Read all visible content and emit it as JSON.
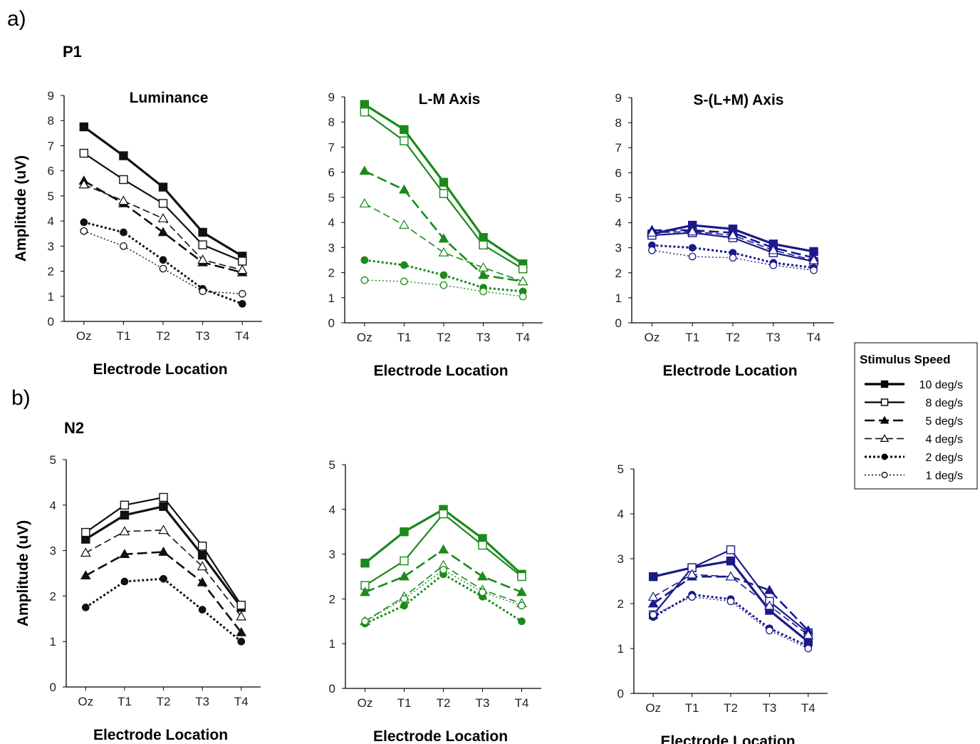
{
  "figure": {
    "panel_a_label": "a)",
    "panel_b_label": "b)",
    "component_a": "P1",
    "component_b": "N2"
  },
  "legend": {
    "title": "Stimulus Speed",
    "entries": [
      {
        "label": "10 deg/s",
        "marker": "filled-square",
        "line": "solid"
      },
      {
        "label": "8 deg/s",
        "marker": "open-square",
        "line": "solid"
      },
      {
        "label": "5 deg/s",
        "marker": "filled-triangle",
        "line": "long-dash"
      },
      {
        "label": "4 deg/s",
        "marker": "open-triangle",
        "line": "long-dash"
      },
      {
        "label": "2 deg/s",
        "marker": "filled-circle",
        "line": "dotted"
      },
      {
        "label": "1 deg/s",
        "marker": "open-circle",
        "line": "dotted"
      }
    ]
  },
  "colors": {
    "luminance": "#111111",
    "lm": "#1a8a1a",
    "s": "#1a1a8c"
  },
  "chart_data": [
    {
      "type": "line",
      "title": "Luminance",
      "ylabel": "Amplitude (uV)",
      "xlabel": "Electrode Location",
      "categories": [
        "Oz",
        "T1",
        "T2",
        "T3",
        "T4"
      ],
      "ylim": [
        0,
        9
      ],
      "yticks": [
        0,
        1,
        2,
        3,
        4,
        5,
        6,
        7,
        8,
        9
      ],
      "color_key": "luminance",
      "series": [
        {
          "name": "10 deg/s",
          "values": [
            7.75,
            6.6,
            5.35,
            3.55,
            2.6
          ]
        },
        {
          "name": "8 deg/s",
          "values": [
            6.7,
            5.65,
            4.7,
            3.05,
            2.4
          ]
        },
        {
          "name": "5 deg/s",
          "values": [
            5.6,
            4.7,
            3.55,
            2.35,
            1.95
          ]
        },
        {
          "name": "4 deg/s",
          "values": [
            5.45,
            4.8,
            4.1,
            2.45,
            2.05
          ]
        },
        {
          "name": "2 deg/s",
          "values": [
            3.95,
            3.55,
            2.45,
            1.3,
            0.7
          ]
        },
        {
          "name": "1 deg/s",
          "values": [
            3.6,
            3.0,
            2.1,
            1.2,
            1.1
          ]
        }
      ]
    },
    {
      "type": "line",
      "title": "L-M Axis",
      "ylabel": "",
      "xlabel": "Electrode Location",
      "categories": [
        "Oz",
        "T1",
        "T2",
        "T3",
        "T4"
      ],
      "ylim": [
        0,
        9
      ],
      "yticks": [
        0,
        1,
        2,
        3,
        4,
        5,
        6,
        7,
        8,
        9
      ],
      "color_key": "lm",
      "series": [
        {
          "name": "10 deg/s",
          "values": [
            8.7,
            7.7,
            5.6,
            3.4,
            2.35
          ]
        },
        {
          "name": "8 deg/s",
          "values": [
            8.4,
            7.25,
            5.15,
            3.1,
            2.15
          ]
        },
        {
          "name": "5 deg/s",
          "values": [
            6.05,
            5.3,
            3.35,
            1.9,
            1.65
          ]
        },
        {
          "name": "4 deg/s",
          "values": [
            4.75,
            3.9,
            2.8,
            2.2,
            1.65
          ]
        },
        {
          "name": "2 deg/s",
          "values": [
            2.5,
            2.3,
            1.9,
            1.4,
            1.25
          ]
        },
        {
          "name": "1 deg/s",
          "values": [
            1.7,
            1.65,
            1.5,
            1.25,
            1.05
          ]
        }
      ]
    },
    {
      "type": "line",
      "title": "S-(L+M) Axis",
      "ylabel": "",
      "xlabel": "Electrode Location",
      "categories": [
        "Oz",
        "T1",
        "T2",
        "T3",
        "T4"
      ],
      "ylim": [
        0,
        9
      ],
      "yticks": [
        0,
        1,
        2,
        3,
        4,
        5,
        6,
        7,
        8,
        9
      ],
      "color_key": "s",
      "series": [
        {
          "name": "10 deg/s",
          "values": [
            3.55,
            3.9,
            3.75,
            3.15,
            2.85
          ]
        },
        {
          "name": "8 deg/s",
          "values": [
            3.5,
            3.6,
            3.4,
            2.8,
            2.45
          ]
        },
        {
          "name": "5 deg/s",
          "values": [
            3.7,
            3.7,
            3.6,
            3.0,
            2.6
          ]
        },
        {
          "name": "4 deg/s",
          "values": [
            3.6,
            3.65,
            3.5,
            2.9,
            2.5
          ]
        },
        {
          "name": "2 deg/s",
          "values": [
            3.1,
            3.0,
            2.8,
            2.4,
            2.2
          ]
        },
        {
          "name": "1 deg/s",
          "values": [
            2.9,
            2.65,
            2.6,
            2.3,
            2.1
          ]
        }
      ]
    },
    {
      "type": "line",
      "title": "",
      "ylabel": "Amplitude (uV)",
      "xlabel": "Electrode Location",
      "categories": [
        "Oz",
        "T1",
        "T2",
        "T3",
        "T4"
      ],
      "ylim": [
        0,
        5
      ],
      "yticks": [
        0,
        1,
        2,
        3,
        4,
        5
      ],
      "color_key": "luminance",
      "series": [
        {
          "name": "10 deg/s",
          "values": [
            3.25,
            3.78,
            3.97,
            2.9,
            1.75
          ]
        },
        {
          "name": "8 deg/s",
          "values": [
            3.4,
            4.0,
            4.17,
            3.1,
            1.8
          ]
        },
        {
          "name": "5 deg/s",
          "values": [
            2.45,
            2.92,
            2.97,
            2.3,
            1.2
          ]
        },
        {
          "name": "4 deg/s",
          "values": [
            2.95,
            3.42,
            3.45,
            2.65,
            1.55
          ]
        },
        {
          "name": "2 deg/s",
          "values": [
            1.75,
            2.32,
            2.38,
            1.7,
            1.0
          ]
        },
        {
          "name": "1 deg/s",
          "values": [
            null,
            null,
            null,
            null,
            null
          ]
        }
      ]
    },
    {
      "type": "line",
      "title": "",
      "ylabel": "",
      "xlabel": "Electrode Location",
      "categories": [
        "Oz",
        "T1",
        "T2",
        "T3",
        "T4"
      ],
      "ylim": [
        0,
        5
      ],
      "yticks": [
        0,
        1,
        2,
        3,
        4,
        5
      ],
      "color_key": "lm",
      "series": [
        {
          "name": "10 deg/s",
          "values": [
            2.8,
            3.5,
            4.0,
            3.35,
            2.55
          ]
        },
        {
          "name": "8 deg/s",
          "values": [
            2.3,
            2.85,
            3.9,
            3.2,
            2.5
          ]
        },
        {
          "name": "5 deg/s",
          "values": [
            2.15,
            2.5,
            3.1,
            2.5,
            2.15
          ]
        },
        {
          "name": "4 deg/s",
          "values": [
            1.5,
            2.05,
            2.75,
            2.2,
            1.9
          ]
        },
        {
          "name": "2 deg/s",
          "values": [
            1.45,
            1.85,
            2.55,
            2.05,
            1.5
          ]
        },
        {
          "name": "1 deg/s",
          "values": [
            1.5,
            2.0,
            2.65,
            2.15,
            1.85
          ]
        }
      ]
    },
    {
      "type": "line",
      "title": "",
      "ylabel": "",
      "xlabel": "Electrode Location",
      "categories": [
        "Oz",
        "T1",
        "T2",
        "T3",
        "T4"
      ],
      "ylim": [
        0,
        5
      ],
      "yticks": [
        0,
        1,
        2,
        3,
        4,
        5
      ],
      "color_key": "s",
      "series": [
        {
          "name": "10 deg/s",
          "values": [
            2.6,
            2.8,
            2.95,
            1.85,
            1.15
          ]
        },
        {
          "name": "8 deg/s",
          "values": [
            1.75,
            2.8,
            3.2,
            2.05,
            1.35
          ]
        },
        {
          "name": "5 deg/s",
          "values": [
            2.0,
            2.6,
            2.6,
            2.3,
            1.4
          ]
        },
        {
          "name": "4 deg/s",
          "values": [
            2.15,
            2.65,
            2.6,
            1.95,
            1.3
          ]
        },
        {
          "name": "2 deg/s",
          "values": [
            1.7,
            2.2,
            2.1,
            1.45,
            1.05
          ]
        },
        {
          "name": "1 deg/s",
          "values": [
            1.75,
            2.15,
            2.05,
            1.4,
            1.0
          ]
        }
      ]
    }
  ]
}
